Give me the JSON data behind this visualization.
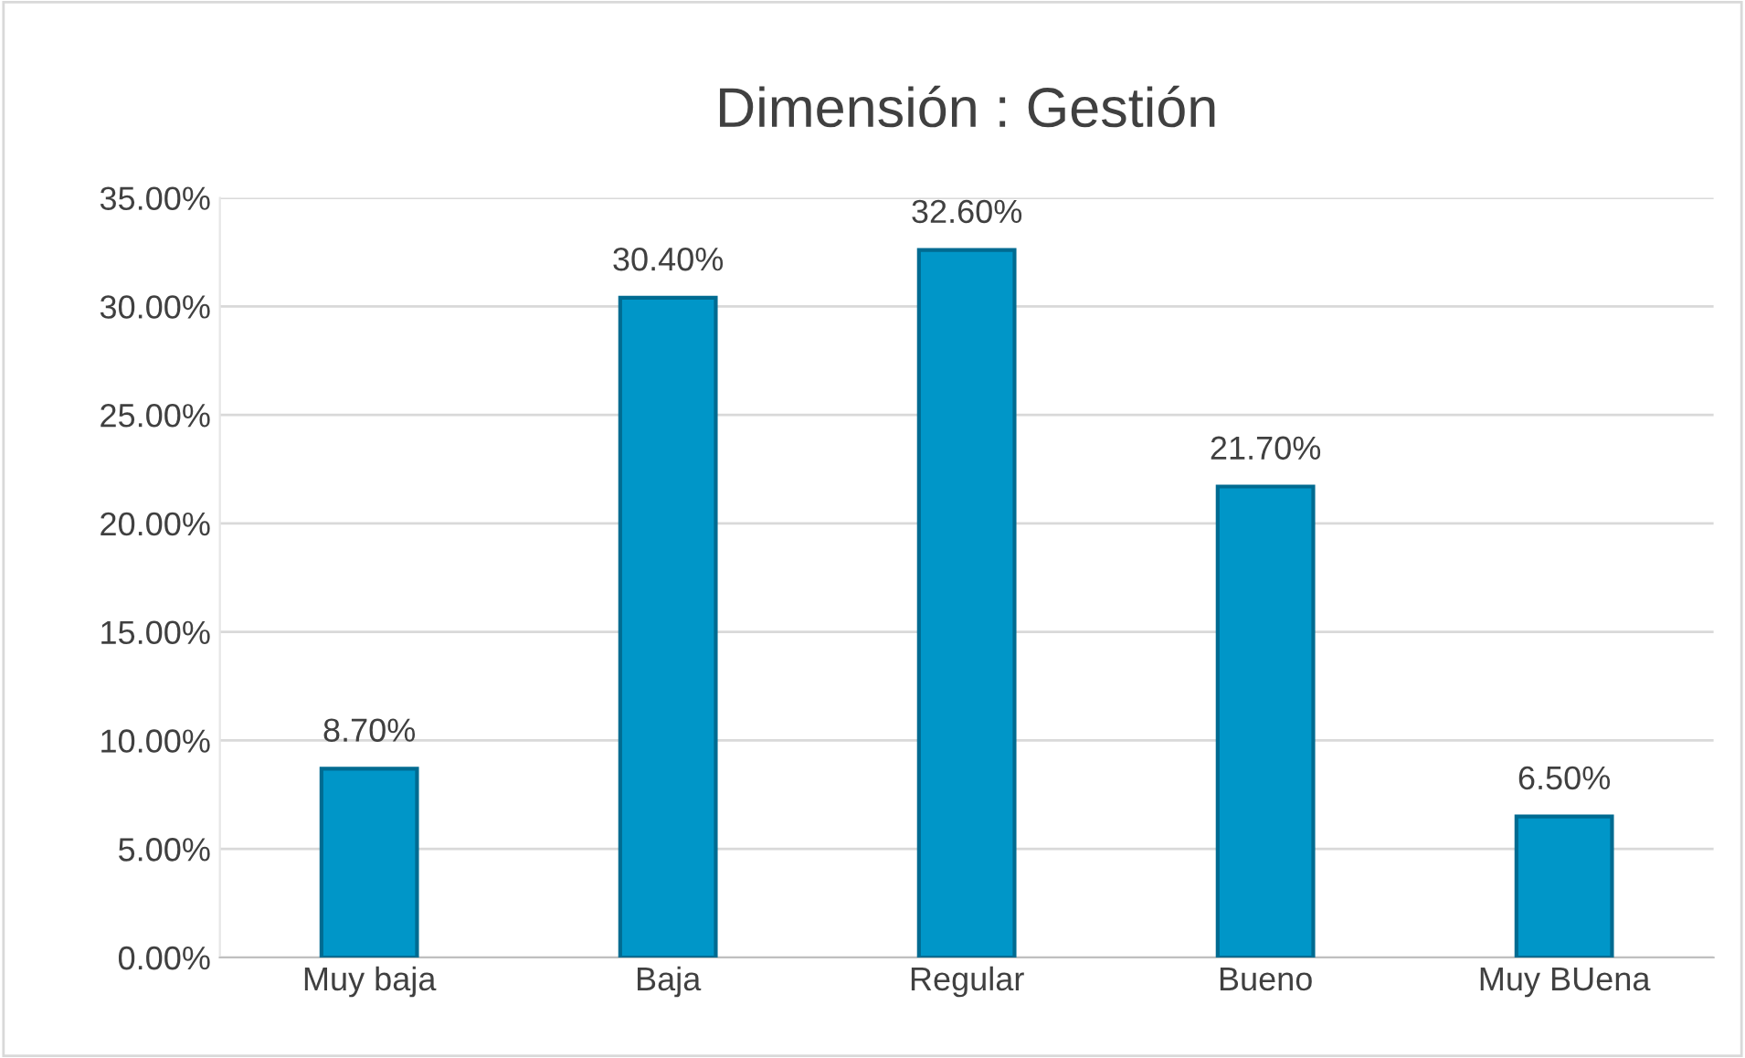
{
  "chart_data": {
    "type": "bar",
    "title": "Dimensión : Gestión",
    "categories": [
      "Muy baja",
      "Baja",
      "Regular",
      "Bueno",
      "Muy BUena"
    ],
    "values": [
      8.7,
      30.4,
      32.6,
      21.7,
      6.5
    ],
    "value_labels": [
      "8.70%",
      "30.40%",
      "32.60%",
      "21.70%",
      "6.50%"
    ],
    "color": "#0096c8",
    "ylim": [
      0,
      35
    ],
    "yticks": [
      {
        "value": 0,
        "label": "0.00%"
      },
      {
        "value": 5,
        "label": "5.00%"
      },
      {
        "value": 10,
        "label": "10.00%"
      },
      {
        "value": 15,
        "label": "15.00%"
      },
      {
        "value": 20,
        "label": "20.00%"
      },
      {
        "value": 25,
        "label": "25.00%"
      },
      {
        "value": 30,
        "label": "30.00%"
      },
      {
        "value": 35,
        "label": "35.00%"
      }
    ],
    "grid": "y",
    "legend": false
  }
}
